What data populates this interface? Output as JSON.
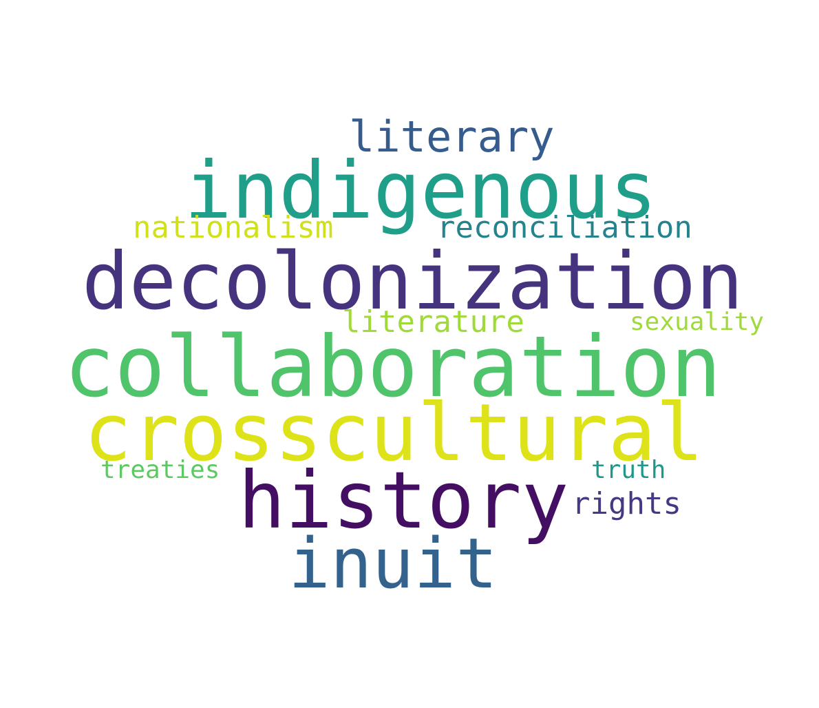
{
  "words": [
    {
      "id": "literary",
      "text": "literary",
      "color": "#365c8d"
    },
    {
      "id": "indigenous",
      "text": "indigenous",
      "color": "#1f9e89"
    },
    {
      "id": "nationalism",
      "text": "nationalism",
      "color": "#d0e11c"
    },
    {
      "id": "reconciliation",
      "text": "reconciliation",
      "color": "#25838e"
    },
    {
      "id": "decolonization",
      "text": "decolonization",
      "color": "#46337e"
    },
    {
      "id": "literature",
      "text": "literature",
      "color": "#a0da39"
    },
    {
      "id": "sexuality",
      "text": "sexuality",
      "color": "#9fda3a"
    },
    {
      "id": "collaboration",
      "text": "collaboration",
      "color": "#4fc46a"
    },
    {
      "id": "crosscultural",
      "text": "crosscultural",
      "color": "#dde318"
    },
    {
      "id": "treaties",
      "text": "treaties",
      "color": "#5ec962"
    },
    {
      "id": "truth",
      "text": "truth",
      "color": "#1f988b"
    },
    {
      "id": "history",
      "text": "history",
      "color": "#440f62"
    },
    {
      "id": "rights",
      "text": "rights",
      "color": "#443983"
    },
    {
      "id": "inuit",
      "text": "inuit",
      "color": "#33638d"
    }
  ]
}
